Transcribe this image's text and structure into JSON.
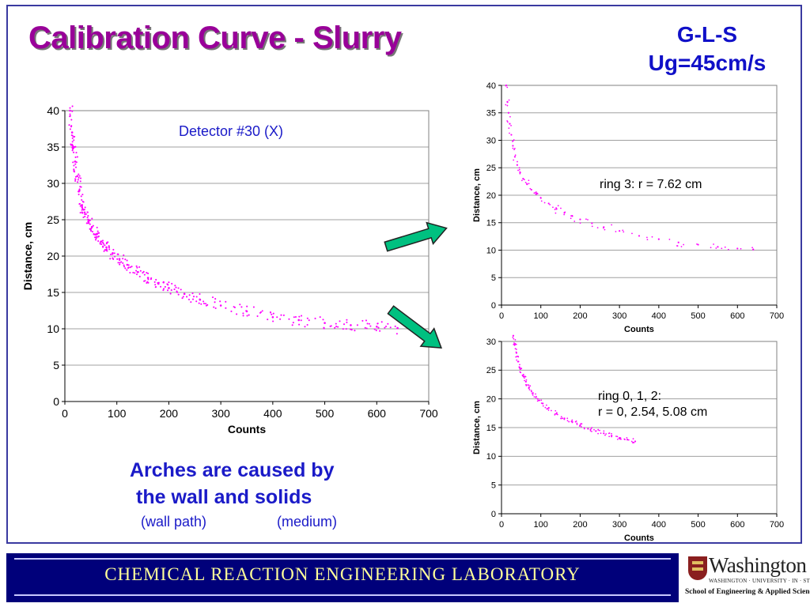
{
  "slide": {
    "title": "Calibration Curve - Slurry",
    "conditions": [
      "G-L-S",
      "Ug=45cm/s"
    ],
    "caption": {
      "line1": "Arches are caused by",
      "line2": "the wall and solids",
      "wall": "(wall path)",
      "medium": "(medium)"
    },
    "footer": "CHEMICAL  REACTION  ENGINEERING  LABORATORY",
    "logo": {
      "name": "Washington",
      "university": "WASHINGTON · UNIVERSITY · IN · ST · LOUIS",
      "school": "School of Engineering & Applied Science"
    }
  },
  "colors": {
    "title": "#990099",
    "blue_text": "#1a1ac8",
    "points": "#ff00ff",
    "arrow": "#00c080",
    "footer_bg": "#00007a",
    "footer_text": "#ffff99"
  },
  "chart_data": [
    {
      "type": "scatter",
      "xlabel": "Counts",
      "ylabel": "Distance, cm",
      "xlim": [
        0,
        700
      ],
      "ylim": [
        0,
        40
      ],
      "xticks": [
        0,
        100,
        200,
        300,
        400,
        500,
        600,
        700
      ],
      "yticks": [
        0,
        5,
        10,
        15,
        20,
        25,
        30,
        35,
        40
      ],
      "annotation": "Detector #30 (X)",
      "grid": "horizontal",
      "series": [
        {
          "points": [
            [
              10,
              40
            ],
            [
              14,
              37
            ],
            [
              17,
              35
            ],
            [
              20,
              33
            ],
            [
              24,
              31
            ],
            [
              28,
              29
            ],
            [
              33,
              27
            ],
            [
              38,
              26
            ],
            [
              45,
              25
            ],
            [
              52,
              24
            ],
            [
              60,
              23
            ],
            [
              70,
              22
            ],
            [
              80,
              21.2
            ],
            [
              92,
              20.4
            ],
            [
              105,
              19.6
            ],
            [
              120,
              18.8
            ],
            [
              140,
              17.8
            ],
            [
              160,
              17
            ],
            [
              180,
              16.2
            ],
            [
              200,
              15.6
            ],
            [
              230,
              14.8
            ],
            [
              260,
              14
            ],
            [
              300,
              13.2
            ],
            [
              350,
              12.4
            ],
            [
              400,
              11.6
            ],
            [
              450,
              11.2
            ],
            [
              500,
              10.8
            ],
            [
              550,
              10.5
            ],
            [
              600,
              10.3
            ],
            [
              640,
              10.1
            ]
          ]
        }
      ]
    },
    {
      "type": "scatter",
      "xlabel": "Counts",
      "ylabel": "Distance, cm",
      "xlim": [
        0,
        700
      ],
      "ylim": [
        0,
        40
      ],
      "xticks": [
        0,
        100,
        200,
        300,
        400,
        500,
        600,
        700
      ],
      "yticks": [
        0,
        5,
        10,
        15,
        20,
        25,
        30,
        35,
        40
      ],
      "annotation": "ring 3: r = 7.62 cm",
      "grid": "horizontal",
      "series": [
        {
          "points": [
            [
              12,
              40
            ],
            [
              15,
              37
            ],
            [
              18,
              35
            ],
            [
              21,
              33
            ],
            [
              25,
              31
            ],
            [
              29,
              29
            ],
            [
              34,
              27
            ],
            [
              40,
              25.5
            ],
            [
              47,
              24.2
            ],
            [
              55,
              23
            ],
            [
              65,
              22
            ],
            [
              76,
              21
            ],
            [
              88,
              20.2
            ],
            [
              100,
              19.5
            ],
            [
              120,
              18.5
            ],
            [
              140,
              17.5
            ],
            [
              160,
              16.8
            ],
            [
              180,
              16.2
            ],
            [
              200,
              15.6
            ],
            [
              230,
              14.9
            ],
            [
              260,
              14.2
            ],
            [
              300,
              13.5
            ],
            [
              350,
              12.6
            ],
            [
              400,
              12
            ],
            [
              450,
              11.4
            ],
            [
              500,
              11
            ],
            [
              550,
              10.6
            ],
            [
              600,
              10.3
            ],
            [
              640,
              10.1
            ]
          ]
        }
      ]
    },
    {
      "type": "scatter",
      "xlabel": "Counts",
      "ylabel": "Distance, cm",
      "xlim": [
        0,
        700
      ],
      "ylim": [
        0,
        30
      ],
      "xticks": [
        0,
        100,
        200,
        300,
        400,
        500,
        600,
        700
      ],
      "yticks": [
        0,
        5,
        10,
        15,
        20,
        25,
        30
      ],
      "annotation": [
        "ring 0, 1, 2:",
        "r = 0, 2.54, 5.08 cm"
      ],
      "grid": "horizontal",
      "series": [
        {
          "points": [
            [
              30,
              31
            ],
            [
              34,
              29.5
            ],
            [
              38,
              28
            ],
            [
              43,
              26.5
            ],
            [
              48,
              25.2
            ],
            [
              55,
              24
            ],
            [
              62,
              23
            ],
            [
              70,
              22
            ],
            [
              80,
              21
            ],
            [
              92,
              20
            ],
            [
              105,
              19.2
            ],
            [
              120,
              18.4
            ],
            [
              140,
              17.4
            ],
            [
              160,
              16.6
            ],
            [
              180,
              16
            ],
            [
              200,
              15.4
            ],
            [
              220,
              14.8
            ],
            [
              240,
              14.4
            ],
            [
              260,
              14
            ],
            [
              280,
              13.6
            ],
            [
              300,
              13.2
            ],
            [
              320,
              12.9
            ],
            [
              340,
              12.6
            ]
          ]
        }
      ]
    }
  ]
}
